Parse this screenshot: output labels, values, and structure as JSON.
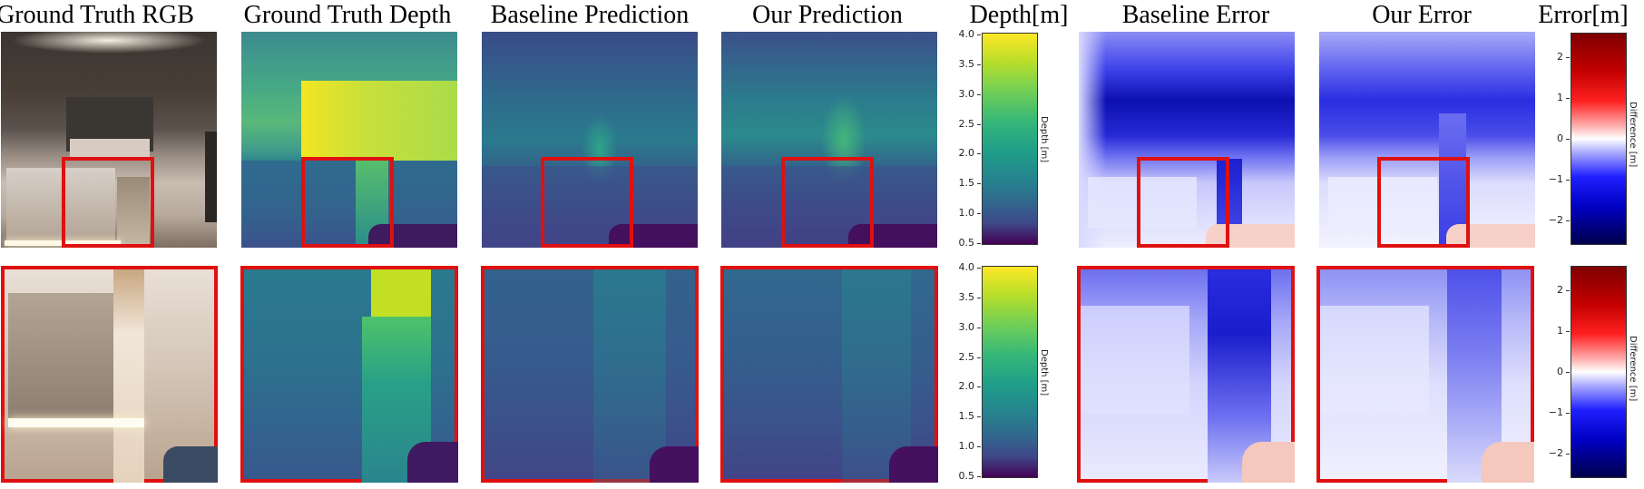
{
  "titles": {
    "rgb": "Ground Truth RGB",
    "gt_depth": "Ground Truth Depth",
    "baseline_pred": "Baseline Prediction",
    "our_pred": "Our Prediction",
    "depth_cb": "Depth[m]",
    "baseline_err": "Baseline Error",
    "our_err": "Our Error",
    "error_cb": "Error[m]"
  },
  "depth_colorbar": {
    "label": "Depth [m]",
    "ticks": [
      "4.0",
      "3.5",
      "3.0",
      "2.5",
      "2.0",
      "1.5",
      "1.0",
      "0.5"
    ],
    "range": [
      0.5,
      4.0
    ],
    "colormap": "viridis"
  },
  "error_colorbar": {
    "label": "Difference [m]",
    "ticks": [
      "2",
      "1",
      "0",
      "−1",
      "−2"
    ],
    "range": [
      -2.6,
      2.6
    ],
    "colormap": "seismic"
  },
  "colors": {
    "highlight": "#e01010"
  }
}
